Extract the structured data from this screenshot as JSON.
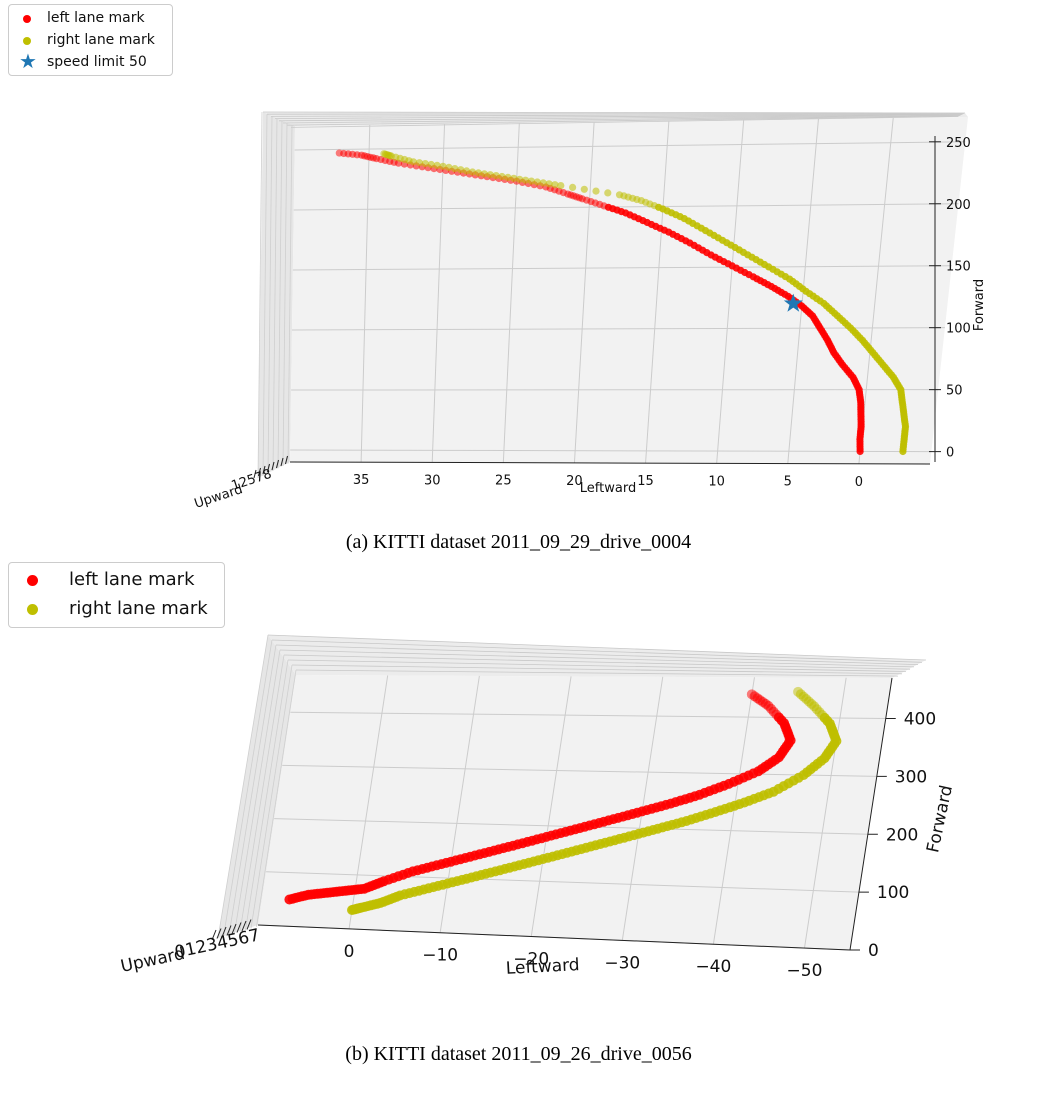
{
  "chart_data": [
    {
      "type": "scatter",
      "subtype": "3d",
      "caption": "(a) KITTI dataset 2011_09_29_drive_0004",
      "xlabel": "Leftward",
      "ylabel": "Forward",
      "zlabel": "Upward",
      "x_ticks": [
        "35",
        "30",
        "25",
        "20",
        "15",
        "10",
        "5",
        "0"
      ],
      "y_ticks": [
        "0",
        "50",
        "100",
        "150",
        "200",
        "250"
      ],
      "z_tick_text": "12578",
      "legend_position": "upper-left",
      "grid": true,
      "series": [
        {
          "name": "left lane mark",
          "color": "#ff0000",
          "marker": "circle",
          "points": [
            [
              0,
              0
            ],
            [
              0.1,
              10
            ],
            [
              0.1,
              20
            ],
            [
              0.2,
              30
            ],
            [
              0.3,
              40
            ],
            [
              0.5,
              50
            ],
            [
              1,
              60
            ],
            [
              1.8,
              70
            ],
            [
              2.5,
              80
            ],
            [
              3,
              90
            ],
            [
              3.6,
              100
            ],
            [
              4.2,
              110
            ],
            [
              5,
              118
            ],
            [
              6,
              126
            ],
            [
              7.2,
              134
            ],
            [
              8.5,
              142
            ],
            [
              10,
              151
            ],
            [
              11.5,
              160
            ],
            [
              13,
              170
            ],
            [
              14.5,
              179
            ],
            [
              16,
              187
            ],
            [
              17.5,
              195
            ],
            [
              19,
              201
            ],
            [
              20.5,
              207
            ],
            [
              21.5,
              211
            ],
            [
              23,
              217
            ],
            [
              25,
              222
            ],
            [
              27,
              226
            ],
            [
              29,
              230
            ],
            [
              31,
              234
            ],
            [
              33,
              238
            ],
            [
              34.5,
              242
            ],
            [
              35.5,
              245
            ],
            [
              37,
              247
            ]
          ]
        },
        {
          "name": "right lane mark",
          "color": "#bfbf00",
          "marker": "circle",
          "points": [
            [
              -3,
              0
            ],
            [
              -3,
              10
            ],
            [
              -3,
              20
            ],
            [
              -2.8,
              30
            ],
            [
              -2.6,
              40
            ],
            [
              -2.4,
              50
            ],
            [
              -1.8,
              60
            ],
            [
              -1,
              70
            ],
            [
              -0.2,
              80
            ],
            [
              0.6,
              90
            ],
            [
              1.5,
              100
            ],
            [
              2.5,
              110
            ],
            [
              3.5,
              120
            ],
            [
              4.8,
              130
            ],
            [
              6,
              140
            ],
            [
              7.5,
              150
            ],
            [
              9,
              160
            ],
            [
              10.5,
              170
            ],
            [
              12,
              180
            ],
            [
              13.5,
              190
            ],
            [
              15,
              198
            ],
            [
              16.5,
              205
            ],
            [
              18,
              210
            ],
            [
              22,
              218
            ],
            [
              24,
              222
            ],
            [
              26,
              226
            ],
            [
              28,
              230
            ],
            [
              30,
              235
            ],
            [
              32,
              239
            ],
            [
              33.5,
              244
            ],
            [
              34,
              246
            ]
          ]
        },
        {
          "name": "speed limit 50",
          "color": "#1f77b4",
          "marker": "star",
          "points": [
            [
              5.6,
              120
            ]
          ]
        }
      ]
    },
    {
      "type": "scatter",
      "subtype": "3d",
      "caption": "(b) KITTI dataset 2011_09_26_drive_0056",
      "xlabel": "Leftward",
      "ylabel": "Forward",
      "zlabel": "Upward",
      "x_ticks": [
        "0",
        "−10",
        "−20",
        "−30",
        "−40",
        "−50"
      ],
      "y_ticks": [
        "0",
        "100",
        "200",
        "300",
        "400"
      ],
      "z_tick_text": "01234567",
      "legend_position": "upper-left",
      "grid": true,
      "series": [
        {
          "name": "left lane mark",
          "color": "#ff0000",
          "marker": "circle",
          "points": [
            [
              7,
              50
            ],
            [
              5,
              60
            ],
            [
              3,
              65
            ],
            [
              1,
              70
            ],
            [
              -1,
              75
            ],
            [
              -3,
              90
            ],
            [
              -6,
              110
            ],
            [
              -9,
              125
            ],
            [
              -12,
              140
            ],
            [
              -15,
              155
            ],
            [
              -18,
              170
            ],
            [
              -21,
              185
            ],
            [
              -24,
              200
            ],
            [
              -27,
              215
            ],
            [
              -30,
              230
            ],
            [
              -33,
              245
            ],
            [
              -36,
              262
            ],
            [
              -39,
              282
            ],
            [
              -42,
              305
            ],
            [
              -44,
              330
            ],
            [
              -45,
              360
            ],
            [
              -44,
              390
            ],
            [
              -42,
              420
            ],
            [
              -40,
              440
            ]
          ]
        },
        {
          "name": "right lane mark",
          "color": "#bfbf00",
          "marker": "circle",
          "points": [
            [
              0,
              35
            ],
            [
              -1,
              40
            ],
            [
              -3,
              50
            ],
            [
              -5,
              65
            ],
            [
              -8,
              80
            ],
            [
              -11,
              95
            ],
            [
              -14,
              110
            ],
            [
              -17,
              125
            ],
            [
              -20,
              140
            ],
            [
              -23,
              155
            ],
            [
              -26,
              170
            ],
            [
              -29,
              185
            ],
            [
              -32,
              200
            ],
            [
              -35,
              215
            ],
            [
              -38,
              232
            ],
            [
              -41,
              250
            ],
            [
              -44,
              270
            ],
            [
              -47,
              300
            ],
            [
              -49,
              330
            ],
            [
              -50,
              360
            ],
            [
              -49,
              390
            ],
            [
              -47,
              420
            ],
            [
              -45,
              445
            ]
          ]
        }
      ]
    }
  ]
}
